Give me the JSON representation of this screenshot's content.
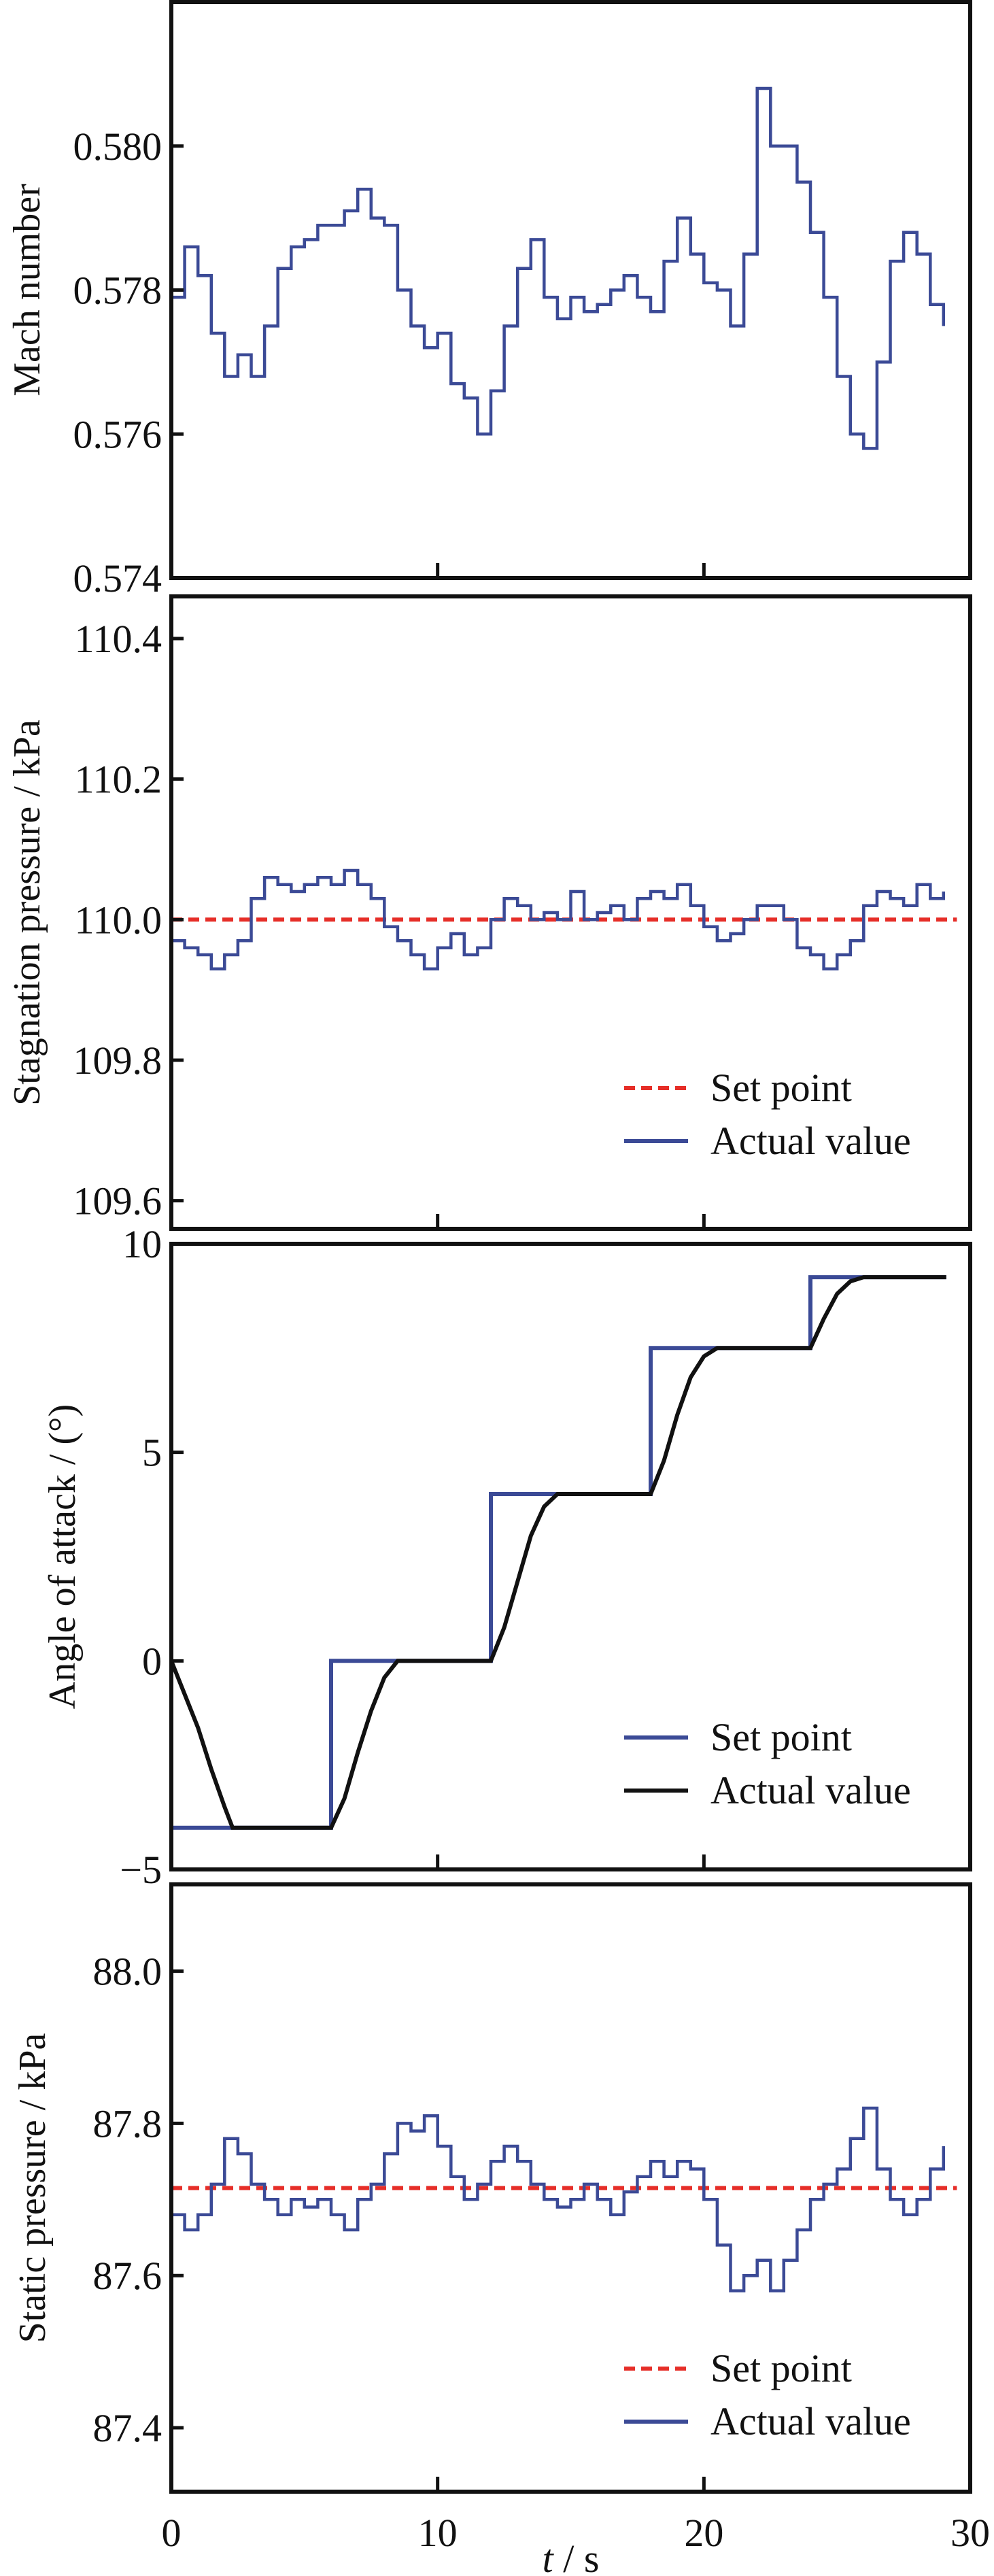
{
  "colors": {
    "actual_blue": "#3b4a96",
    "setpoint_red": "#e62e28",
    "actual_black": "#111111",
    "axis": "#111111"
  },
  "chart_data": [
    {
      "type": "line",
      "id": "mach",
      "ylabel": "Mach number",
      "xlim": [
        0,
        30
      ],
      "ylim": [
        0.574,
        0.582
      ],
      "yticks": [
        0.574,
        0.576,
        0.578,
        0.58
      ],
      "ytick_labels": [
        "0.574",
        "0.576",
        "0.578",
        "0.580"
      ],
      "legend": null,
      "series": [
        {
          "name": "Actual value",
          "color": "#3b4a96",
          "style": "step",
          "x": [
            0,
            0.5,
            1,
            1.5,
            2,
            2.5,
            3,
            3.5,
            4,
            4.5,
            5,
            5.5,
            6,
            6.5,
            7,
            7.5,
            8,
            8.5,
            9,
            9.5,
            10,
            10.5,
            11,
            11.5,
            12,
            12.5,
            13,
            13.5,
            14,
            14.5,
            15,
            15.5,
            16,
            16.5,
            17,
            17.5,
            18,
            18.5,
            19,
            19.5,
            20,
            20.5,
            21,
            21.5,
            22,
            22.5,
            23,
            23.5,
            24,
            24.5,
            25,
            25.5,
            26,
            26.5,
            27,
            27.5,
            28,
            28.5,
            29
          ],
          "y": [
            0.5779,
            0.5786,
            0.5782,
            0.5774,
            0.5768,
            0.5771,
            0.5768,
            0.5775,
            0.5783,
            0.5786,
            0.5787,
            0.5789,
            0.5789,
            0.5791,
            0.5794,
            0.579,
            0.5789,
            0.578,
            0.5775,
            0.5772,
            0.5774,
            0.5767,
            0.5765,
            0.576,
            0.5766,
            0.5775,
            0.5783,
            0.5787,
            0.5779,
            0.5776,
            0.5779,
            0.5777,
            0.5778,
            0.578,
            0.5782,
            0.5779,
            0.5777,
            0.5784,
            0.579,
            0.5785,
            0.5781,
            0.578,
            0.5775,
            0.5785,
            0.5808,
            0.58,
            0.58,
            0.5795,
            0.5788,
            0.5779,
            0.5768,
            0.576,
            0.5758,
            0.577,
            0.5784,
            0.5788,
            0.5785,
            0.5778,
            0.5775
          ]
        }
      ]
    },
    {
      "type": "line",
      "id": "stagnation",
      "ylabel": "Stagnation pressure / kPa",
      "xlim": [
        0,
        30
      ],
      "ylim": [
        109.56,
        110.46
      ],
      "yticks": [
        109.6,
        109.8,
        110.0,
        110.2,
        110.4
      ],
      "ytick_labels": [
        "109.6",
        "109.8",
        "110.0",
        "110.2",
        "110.4"
      ],
      "legend": [
        "Set point",
        "Actual value"
      ],
      "legend_position": "bottom-right",
      "series": [
        {
          "name": "Set point",
          "color": "#e62e28",
          "style": "dashed",
          "x": [
            0,
            29.5
          ],
          "y": [
            110.0,
            110.0
          ]
        },
        {
          "name": "Actual value",
          "color": "#3b4a96",
          "style": "step",
          "x": [
            0,
            0.5,
            1,
            1.5,
            2,
            2.5,
            3,
            3.5,
            4,
            4.5,
            5,
            5.5,
            6,
            6.5,
            7,
            7.5,
            8,
            8.5,
            9,
            9.5,
            10,
            10.5,
            11,
            11.5,
            12,
            12.5,
            13,
            13.5,
            14,
            14.5,
            15,
            15.5,
            16,
            16.5,
            17,
            17.5,
            18,
            18.5,
            19,
            19.5,
            20,
            20.5,
            21,
            21.5,
            22,
            22.5,
            23,
            23.5,
            24,
            24.5,
            25,
            25.5,
            26,
            26.5,
            27,
            27.5,
            28,
            28.5,
            29
          ],
          "y": [
            109.97,
            109.96,
            109.95,
            109.93,
            109.95,
            109.97,
            110.03,
            110.06,
            110.05,
            110.04,
            110.05,
            110.06,
            110.05,
            110.07,
            110.05,
            110.03,
            109.99,
            109.97,
            109.95,
            109.93,
            109.96,
            109.98,
            109.95,
            109.96,
            110.0,
            110.03,
            110.02,
            110.0,
            110.01,
            110.0,
            110.04,
            110.0,
            110.01,
            110.02,
            110.0,
            110.03,
            110.04,
            110.03,
            110.05,
            110.02,
            109.99,
            109.97,
            109.98,
            110.0,
            110.02,
            110.02,
            110.0,
            109.96,
            109.95,
            109.93,
            109.95,
            109.97,
            110.02,
            110.04,
            110.03,
            110.02,
            110.05,
            110.03,
            110.04
          ]
        }
      ]
    },
    {
      "type": "line",
      "id": "aoa",
      "ylabel": "Angle of attack / (°)",
      "xlim": [
        0,
        30
      ],
      "ylim": [
        -5,
        10
      ],
      "yticks": [
        -5,
        0,
        5,
        10
      ],
      "ytick_labels": [
        "−5",
        "0",
        "5",
        "10"
      ],
      "legend": [
        "Set point",
        "Actual value"
      ],
      "legend_position": "bottom-right",
      "series": [
        {
          "name": "Set point",
          "color": "#3b4a96",
          "style": "solid",
          "x": [
            0,
            0,
            6,
            6,
            12,
            12,
            18,
            18,
            24,
            24,
            29.1
          ],
          "y": [
            0,
            -4,
            -4,
            0,
            0,
            4,
            4,
            7.5,
            7.5,
            9.2,
            9.2
          ]
        },
        {
          "name": "Actual value",
          "color": "#111111",
          "style": "solid",
          "x": [
            0,
            0.5,
            1,
            1.5,
            2,
            2.3,
            6,
            6.5,
            7,
            7.5,
            8,
            8.5,
            12,
            12.5,
            13,
            13.5,
            14,
            14.5,
            18,
            18.5,
            19,
            19.5,
            20,
            20.5,
            24,
            24.5,
            25,
            25.5,
            26,
            29.1
          ],
          "y": [
            0,
            -0.8,
            -1.6,
            -2.6,
            -3.5,
            -4,
            -4,
            -3.3,
            -2.2,
            -1.2,
            -0.4,
            0,
            0,
            0.8,
            1.9,
            3.0,
            3.7,
            4,
            4,
            4.8,
            5.9,
            6.8,
            7.3,
            7.5,
            7.5,
            8.2,
            8.8,
            9.1,
            9.2,
            9.2
          ]
        }
      ]
    },
    {
      "type": "line",
      "id": "static",
      "ylabel": "Static pressure / kPa",
      "xlabel_italic": "t",
      "xlabel_rest": " / s",
      "xlim": [
        0,
        30
      ],
      "xticks": [
        0,
        10,
        20,
        30
      ],
      "xtick_labels": [
        "0",
        "10",
        "20",
        "30"
      ],
      "ylim": [
        87.316,
        88.114
      ],
      "yticks": [
        87.4,
        87.6,
        87.8,
        88.0
      ],
      "ytick_labels": [
        "87.4",
        "87.6",
        "87.8",
        "88.0"
      ],
      "legend": [
        "Set point",
        "Actual value"
      ],
      "legend_position": "bottom-right",
      "series": [
        {
          "name": "Set point",
          "color": "#e62e28",
          "style": "dashed",
          "x": [
            0,
            29.5
          ],
          "y": [
            87.715,
            87.715
          ]
        },
        {
          "name": "Actual value",
          "color": "#3b4a96",
          "style": "step",
          "x": [
            0,
            0.5,
            1,
            1.5,
            2,
            2.5,
            3,
            3.5,
            4,
            4.5,
            5,
            5.5,
            6,
            6.5,
            7,
            7.5,
            8,
            8.5,
            9,
            9.5,
            10,
            10.5,
            11,
            11.5,
            12,
            12.5,
            13,
            13.5,
            14,
            14.5,
            15,
            15.5,
            16,
            16.5,
            17,
            17.5,
            18,
            18.5,
            19,
            19.5,
            20,
            20.5,
            21,
            21.5,
            22,
            22.5,
            23,
            23.5,
            24,
            24.5,
            25,
            25.5,
            26,
            26.5,
            27,
            27.5,
            28,
            28.5,
            29
          ],
          "y": [
            87.68,
            87.66,
            87.68,
            87.72,
            87.78,
            87.76,
            87.72,
            87.7,
            87.68,
            87.7,
            87.69,
            87.7,
            87.68,
            87.66,
            87.7,
            87.72,
            87.76,
            87.8,
            87.79,
            87.81,
            87.77,
            87.73,
            87.7,
            87.72,
            87.75,
            87.77,
            87.75,
            87.72,
            87.7,
            87.69,
            87.7,
            87.72,
            87.7,
            87.68,
            87.71,
            87.73,
            87.75,
            87.73,
            87.75,
            87.74,
            87.7,
            87.64,
            87.58,
            87.6,
            87.62,
            87.58,
            87.62,
            87.66,
            87.7,
            87.72,
            87.74,
            87.78,
            87.82,
            87.74,
            87.7,
            87.68,
            87.7,
            87.74,
            87.77
          ]
        }
      ]
    }
  ]
}
